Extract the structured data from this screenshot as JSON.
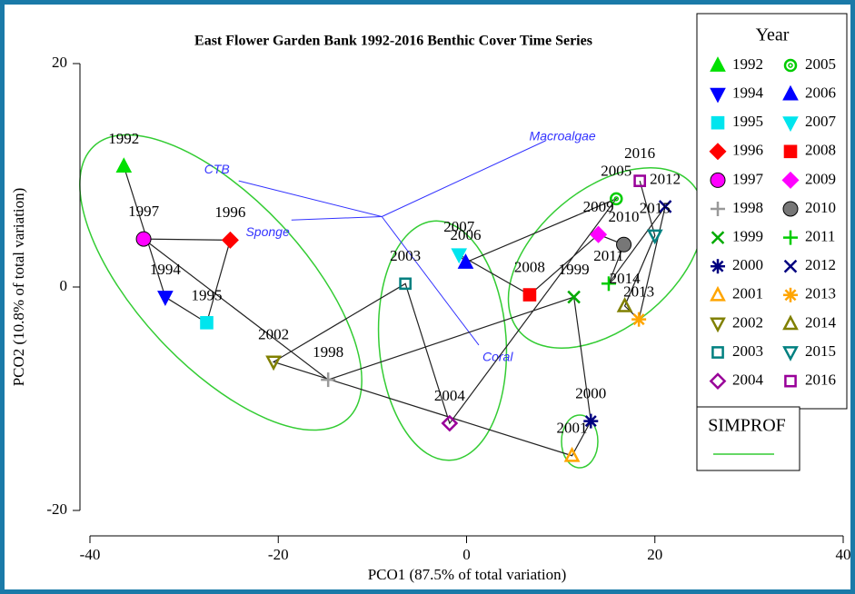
{
  "chart_data": {
    "type": "scatter",
    "title": "East Flower Garden Bank 1992-2016 Benthic Cover Time Series",
    "x_label": "PCO1 (87.5% of total variation)",
    "y_label": "PCO2 (10.8% of total variation)",
    "legend_title": "Year",
    "group_legend": "SIMPROF",
    "group_color": "#33cc33",
    "xlim": [
      -40,
      40
    ],
    "xticks": [
      -40,
      -20,
      0,
      20,
      40
    ],
    "ylim": [
      20,
      -20
    ],
    "yticks": [
      20,
      0,
      -20
    ],
    "trajectory": true,
    "series": [
      {
        "name": "1992",
        "color": "#00e000",
        "marker": "triangle-up",
        "open": false,
        "x": [
          -36.4
        ],
        "values": [
          10.8
        ]
      },
      {
        "name": "1994",
        "color": "#0000ff",
        "marker": "triangle-down",
        "open": false,
        "x": [
          -32.0
        ],
        "values": [
          -0.9
        ]
      },
      {
        "name": "1995",
        "color": "#00e5ee",
        "marker": "square",
        "open": false,
        "x": [
          -27.6
        ],
        "values": [
          -3.2
        ]
      },
      {
        "name": "1996",
        "color": "#ff0000",
        "marker": "diamond",
        "open": false,
        "x": [
          -25.1
        ],
        "values": [
          4.2
        ]
      },
      {
        "name": "1997",
        "color": "#ff00ff",
        "marker": "circle",
        "open": false,
        "x": [
          -34.3
        ],
        "values": [
          4.3
        ]
      },
      {
        "name": "1998",
        "color": "#999999",
        "marker": "plus",
        "open": true,
        "x": [
          -14.7
        ],
        "values": [
          -8.3
        ]
      },
      {
        "name": "1999",
        "color": "#00aa00",
        "marker": "cross",
        "open": true,
        "x": [
          11.4
        ],
        "values": [
          -0.9
        ]
      },
      {
        "name": "2000",
        "color": "#000080",
        "marker": "asterisk",
        "open": true,
        "x": [
          13.2
        ],
        "values": [
          -12.0
        ]
      },
      {
        "name": "2001",
        "color": "#ffa500",
        "marker": "triangle-up",
        "open": true,
        "x": [
          11.2
        ],
        "values": [
          -15.1
        ]
      },
      {
        "name": "2002",
        "color": "#808000",
        "marker": "triangle-down",
        "open": true,
        "x": [
          -20.5
        ],
        "values": [
          -6.7
        ]
      },
      {
        "name": "2003",
        "color": "#008080",
        "marker": "square",
        "open": true,
        "x": [
          -6.5
        ],
        "values": [
          0.3
        ]
      },
      {
        "name": "2004",
        "color": "#990099",
        "marker": "diamond",
        "open": true,
        "x": [
          -1.8
        ],
        "values": [
          -12.2
        ]
      },
      {
        "name": "2005",
        "color": "#00cc00",
        "marker": "circle",
        "open": true,
        "x": [
          15.9
        ],
        "values": [
          7.9
        ]
      },
      {
        "name": "2006",
        "color": "#0000ff",
        "marker": "triangle-up",
        "open": false,
        "x": [
          -0.1
        ],
        "values": [
          2.2
        ]
      },
      {
        "name": "2007",
        "color": "#00e5ee",
        "marker": "triangle-down",
        "open": false,
        "x": [
          -0.8
        ],
        "values": [
          2.9
        ]
      },
      {
        "name": "2008",
        "color": "#ff0000",
        "marker": "square",
        "open": false,
        "x": [
          6.7
        ],
        "values": [
          -0.7
        ]
      },
      {
        "name": "2009",
        "color": "#ff00ff",
        "marker": "diamond",
        "open": false,
        "x": [
          14.0
        ],
        "values": [
          4.7
        ]
      },
      {
        "name": "2010",
        "color": "#777777",
        "marker": "circle",
        "open": false,
        "x": [
          16.7
        ],
        "values": [
          3.8
        ]
      },
      {
        "name": "2011",
        "color": "#00cc00",
        "marker": "plus",
        "open": true,
        "x": [
          15.1
        ],
        "values": [
          0.3
        ]
      },
      {
        "name": "2012",
        "color": "#000080",
        "marker": "cross",
        "open": true,
        "x": [
          21.1
        ],
        "values": [
          7.2
        ]
      },
      {
        "name": "2013",
        "color": "#ffa500",
        "marker": "asterisk",
        "open": true,
        "x": [
          18.3
        ],
        "values": [
          -2.9
        ]
      },
      {
        "name": "2014",
        "color": "#808000",
        "marker": "triangle-up",
        "open": true,
        "x": [
          16.8
        ],
        "values": [
          -1.7
        ]
      },
      {
        "name": "2015",
        "color": "#008080",
        "marker": "triangle-down",
        "open": true,
        "x": [
          20.0
        ],
        "values": [
          4.6
        ]
      },
      {
        "name": "2016",
        "color": "#990099",
        "marker": "square",
        "open": true,
        "x": [
          18.4
        ],
        "values": [
          9.5
        ]
      }
    ],
    "vector_color": "#3333ff",
    "vector_origin": [
      -9.0,
      6.3
    ],
    "vectors": [
      {
        "name": "Macroalgae",
        "x": 8.4,
        "y": 13.1
      },
      {
        "name": "CTB",
        "x": -24.2,
        "y": 9.5
      },
      {
        "name": "Sponge",
        "x": -18.6,
        "y": 6.0
      },
      {
        "name": "Coral",
        "x": 1.3,
        "y": -5.2
      }
    ]
  }
}
